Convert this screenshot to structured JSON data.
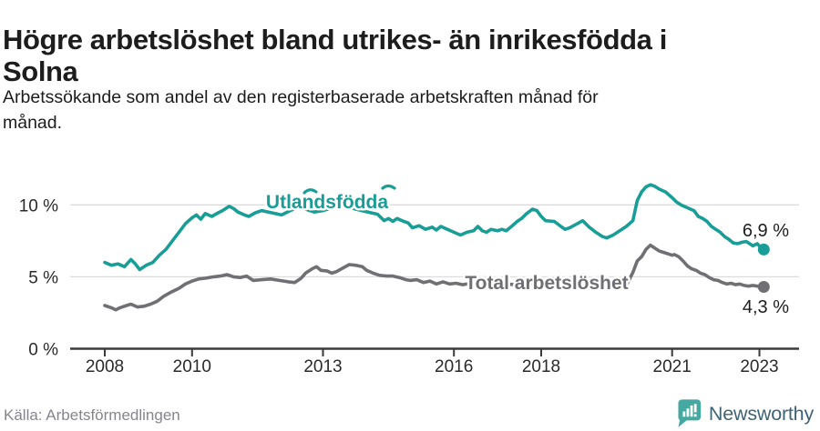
{
  "header": {
    "title_line1": "Högre arbetslöshet bland utrikes- än inrikesfödda i",
    "title_line2": "Solna",
    "subtitle_line1": "Arbetssökande som andel av den registerbaserade arbetskraften månad för",
    "subtitle_line2": "månad."
  },
  "footer": {
    "source": "Källa: Arbetsförmedlingen",
    "brand": "Newsworthy"
  },
  "colors": {
    "teal": "#189e96",
    "gray": "#6f6f74",
    "grid": "#dcdcdc",
    "axis": "#3a3a3a",
    "tick_text": "#2a2a2a",
    "value_text": "#1d1d1d",
    "muted_text": "#85858e",
    "logo_teal": "#45a8a1",
    "brand_text": "#3e6476"
  },
  "chart_data": {
    "type": "line",
    "title": "Högre arbetslöshet bland utrikes- än inrikesfödda i Solna",
    "subtitle": "Arbetssökande som andel av den registerbaserade arbetskraften månad för månad.",
    "source": "Källa: Arbetsförmedlingen",
    "unit": "%",
    "xlabel": "",
    "ylabel": "",
    "xlim": [
      2008,
      2023.4
    ],
    "ylim": [
      0,
      11.5
    ],
    "grid": "horizontal",
    "legend_position": "inline-labels",
    "x_ticks": [
      {
        "label": "2008",
        "year": 2008
      },
      {
        "label": "2010",
        "year": 2010
      },
      {
        "label": "2013",
        "year": 2013
      },
      {
        "label": "2016",
        "year": 2016
      },
      {
        "label": "2018",
        "year": 2018
      },
      {
        "label": "2021",
        "year": 2021
      },
      {
        "label": "2023",
        "year": 2023
      }
    ],
    "y_ticks": [
      {
        "label": "0 %",
        "value": 0
      },
      {
        "label": "5 %",
        "value": 5
      },
      {
        "label": "10 %",
        "value": 10
      }
    ],
    "series": [
      {
        "name": "Utlandsfödda",
        "color": "#189e96",
        "end_label": "6,9 %",
        "end_value": 6.9,
        "points": [
          [
            2008.0,
            6.0
          ],
          [
            2008.15,
            5.8
          ],
          [
            2008.3,
            5.9
          ],
          [
            2008.45,
            5.7
          ],
          [
            2008.6,
            6.2
          ],
          [
            2008.7,
            5.9
          ],
          [
            2008.8,
            5.5
          ],
          [
            2008.95,
            5.8
          ],
          [
            2009.1,
            6.0
          ],
          [
            2009.25,
            6.5
          ],
          [
            2009.4,
            6.9
          ],
          [
            2009.55,
            7.5
          ],
          [
            2009.7,
            8.1
          ],
          [
            2009.85,
            8.7
          ],
          [
            2010.0,
            9.1
          ],
          [
            2010.1,
            9.3
          ],
          [
            2010.2,
            9.0
          ],
          [
            2010.3,
            9.4
          ],
          [
            2010.45,
            9.2
          ],
          [
            2010.6,
            9.45
          ],
          [
            2010.7,
            9.6
          ],
          [
            2010.85,
            9.9
          ],
          [
            2010.95,
            9.75
          ],
          [
            2011.05,
            9.5
          ],
          [
            2011.2,
            9.3
          ],
          [
            2011.3,
            9.2
          ],
          [
            2011.45,
            9.45
          ],
          [
            2011.6,
            9.6
          ],
          [
            2011.75,
            9.5
          ],
          [
            2011.9,
            9.4
          ],
          [
            2012.05,
            9.3
          ],
          [
            2012.25,
            9.6
          ],
          [
            2012.45,
            9.85
          ],
          [
            2012.6,
            9.7
          ],
          [
            2012.8,
            9.5
          ],
          [
            2013.0,
            9.6
          ],
          [
            2013.2,
            9.8
          ],
          [
            2013.4,
            9.95
          ],
          [
            2013.55,
            9.9
          ],
          [
            2013.75,
            9.7
          ],
          [
            2013.95,
            9.55
          ],
          [
            2014.1,
            9.45
          ],
          [
            2014.25,
            9.35
          ],
          [
            2014.4,
            8.9
          ],
          [
            2014.5,
            9.05
          ],
          [
            2014.6,
            8.85
          ],
          [
            2014.7,
            9.05
          ],
          [
            2014.85,
            8.85
          ],
          [
            2014.95,
            8.75
          ],
          [
            2015.05,
            8.4
          ],
          [
            2015.2,
            8.55
          ],
          [
            2015.35,
            8.3
          ],
          [
            2015.5,
            8.45
          ],
          [
            2015.6,
            8.25
          ],
          [
            2015.7,
            8.5
          ],
          [
            2015.85,
            8.3
          ],
          [
            2016.0,
            8.1
          ],
          [
            2016.15,
            7.9
          ],
          [
            2016.3,
            8.1
          ],
          [
            2016.45,
            8.2
          ],
          [
            2016.55,
            8.5
          ],
          [
            2016.65,
            8.2
          ],
          [
            2016.75,
            8.1
          ],
          [
            2016.85,
            8.3
          ],
          [
            2017.0,
            8.2
          ],
          [
            2017.1,
            8.3
          ],
          [
            2017.2,
            8.2
          ],
          [
            2017.3,
            8.45
          ],
          [
            2017.45,
            8.85
          ],
          [
            2017.55,
            9.05
          ],
          [
            2017.65,
            9.35
          ],
          [
            2017.8,
            9.7
          ],
          [
            2017.9,
            9.6
          ],
          [
            2018.0,
            9.2
          ],
          [
            2018.1,
            8.9
          ],
          [
            2018.3,
            8.85
          ],
          [
            2018.45,
            8.5
          ],
          [
            2018.55,
            8.3
          ],
          [
            2018.65,
            8.4
          ],
          [
            2018.8,
            8.65
          ],
          [
            2018.95,
            8.9
          ],
          [
            2019.1,
            8.45
          ],
          [
            2019.25,
            8.1
          ],
          [
            2019.4,
            7.8
          ],
          [
            2019.5,
            7.7
          ],
          [
            2019.65,
            7.9
          ],
          [
            2019.8,
            8.2
          ],
          [
            2019.95,
            8.5
          ],
          [
            2020.1,
            8.9
          ],
          [
            2020.2,
            10.3
          ],
          [
            2020.3,
            10.9
          ],
          [
            2020.4,
            11.25
          ],
          [
            2020.5,
            11.4
          ],
          [
            2020.6,
            11.3
          ],
          [
            2020.7,
            11.1
          ],
          [
            2020.85,
            10.9
          ],
          [
            2021.0,
            10.5
          ],
          [
            2021.1,
            10.2
          ],
          [
            2021.2,
            10.0
          ],
          [
            2021.35,
            9.8
          ],
          [
            2021.5,
            9.6
          ],
          [
            2021.6,
            9.2
          ],
          [
            2021.7,
            9.05
          ],
          [
            2021.8,
            8.85
          ],
          [
            2021.9,
            8.5
          ],
          [
            2022.0,
            8.3
          ],
          [
            2022.1,
            8.1
          ],
          [
            2022.2,
            7.8
          ],
          [
            2022.3,
            7.6
          ],
          [
            2022.4,
            7.35
          ],
          [
            2022.5,
            7.3
          ],
          [
            2022.6,
            7.4
          ],
          [
            2022.7,
            7.45
          ],
          [
            2022.8,
            7.25
          ],
          [
            2022.85,
            7.15
          ],
          [
            2022.95,
            7.3
          ],
          [
            2023.05,
            7.0
          ],
          [
            2023.1,
            6.9
          ]
        ]
      },
      {
        "name": "Total arbetslöshet",
        "color": "#6f6f74",
        "end_label": "4,3 %",
        "end_value": 4.3,
        "points": [
          [
            2008.0,
            3.0
          ],
          [
            2008.15,
            2.85
          ],
          [
            2008.25,
            2.7
          ],
          [
            2008.35,
            2.85
          ],
          [
            2008.5,
            3.0
          ],
          [
            2008.6,
            3.1
          ],
          [
            2008.75,
            2.9
          ],
          [
            2008.9,
            2.95
          ],
          [
            2009.05,
            3.1
          ],
          [
            2009.2,
            3.3
          ],
          [
            2009.35,
            3.65
          ],
          [
            2009.5,
            3.9
          ],
          [
            2009.7,
            4.2
          ],
          [
            2009.85,
            4.5
          ],
          [
            2010.0,
            4.7
          ],
          [
            2010.15,
            4.85
          ],
          [
            2010.3,
            4.9
          ],
          [
            2010.5,
            5.0
          ],
          [
            2010.65,
            5.05
          ],
          [
            2010.8,
            5.15
          ],
          [
            2010.95,
            5.0
          ],
          [
            2011.1,
            4.95
          ],
          [
            2011.25,
            5.05
          ],
          [
            2011.4,
            4.75
          ],
          [
            2011.6,
            4.8
          ],
          [
            2011.8,
            4.85
          ],
          [
            2012.0,
            4.75
          ],
          [
            2012.2,
            4.65
          ],
          [
            2012.35,
            4.6
          ],
          [
            2012.5,
            4.9
          ],
          [
            2012.6,
            5.25
          ],
          [
            2012.75,
            5.55
          ],
          [
            2012.85,
            5.7
          ],
          [
            2012.95,
            5.45
          ],
          [
            2013.1,
            5.4
          ],
          [
            2013.2,
            5.25
          ],
          [
            2013.3,
            5.35
          ],
          [
            2013.45,
            5.6
          ],
          [
            2013.6,
            5.85
          ],
          [
            2013.75,
            5.8
          ],
          [
            2013.9,
            5.7
          ],
          [
            2014.0,
            5.45
          ],
          [
            2014.15,
            5.25
          ],
          [
            2014.3,
            5.1
          ],
          [
            2014.45,
            5.05
          ],
          [
            2014.6,
            5.05
          ],
          [
            2014.75,
            4.95
          ],
          [
            2014.9,
            4.8
          ],
          [
            2015.0,
            4.75
          ],
          [
            2015.15,
            4.8
          ],
          [
            2015.3,
            4.6
          ],
          [
            2015.45,
            4.7
          ],
          [
            2015.6,
            4.5
          ],
          [
            2015.75,
            4.65
          ],
          [
            2015.9,
            4.5
          ],
          [
            2016.05,
            4.55
          ],
          [
            2016.2,
            4.45
          ],
          [
            2016.4,
            4.55
          ],
          [
            2016.6,
            4.4
          ],
          [
            2016.8,
            4.5
          ],
          [
            2017.0,
            4.45
          ],
          [
            2017.2,
            4.5
          ],
          [
            2017.4,
            4.45
          ],
          [
            2017.6,
            4.5
          ],
          [
            2017.8,
            4.55
          ],
          [
            2018.0,
            4.5
          ],
          [
            2018.2,
            4.45
          ],
          [
            2018.4,
            4.4
          ],
          [
            2018.6,
            4.45
          ],
          [
            2018.8,
            4.5
          ],
          [
            2019.0,
            4.4
          ],
          [
            2019.2,
            4.35
          ],
          [
            2019.4,
            4.3
          ],
          [
            2019.6,
            4.25
          ],
          [
            2019.8,
            4.3
          ],
          [
            2019.95,
            4.4
          ],
          [
            2020.1,
            5.3
          ],
          [
            2020.2,
            6.1
          ],
          [
            2020.3,
            6.4
          ],
          [
            2020.4,
            6.9
          ],
          [
            2020.5,
            7.2
          ],
          [
            2020.6,
            7.0
          ],
          [
            2020.7,
            6.8
          ],
          [
            2020.8,
            6.7
          ],
          [
            2020.9,
            6.6
          ],
          [
            2021.0,
            6.5
          ],
          [
            2021.05,
            6.55
          ],
          [
            2021.15,
            6.4
          ],
          [
            2021.25,
            6.1
          ],
          [
            2021.35,
            5.75
          ],
          [
            2021.45,
            5.55
          ],
          [
            2021.55,
            5.45
          ],
          [
            2021.65,
            5.25
          ],
          [
            2021.75,
            5.15
          ],
          [
            2021.85,
            4.95
          ],
          [
            2021.95,
            4.8
          ],
          [
            2022.05,
            4.75
          ],
          [
            2022.15,
            4.6
          ],
          [
            2022.25,
            4.5
          ],
          [
            2022.35,
            4.55
          ],
          [
            2022.45,
            4.45
          ],
          [
            2022.55,
            4.5
          ],
          [
            2022.65,
            4.4
          ],
          [
            2022.75,
            4.35
          ],
          [
            2022.85,
            4.4
          ],
          [
            2022.95,
            4.35
          ],
          [
            2023.1,
            4.3
          ]
        ]
      }
    ]
  }
}
